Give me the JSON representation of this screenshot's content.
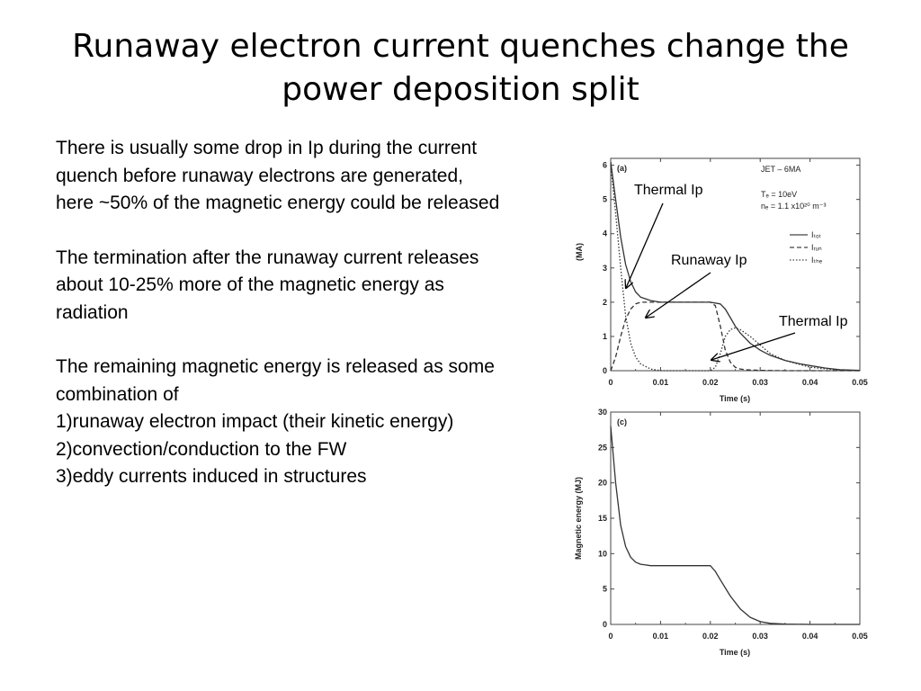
{
  "slide": {
    "title_line1": "Runaway electron current quenches change the",
    "title_line2": "power deposition split",
    "paragraph1": "There is usually some drop in Ip during the current quench before runaway electrons are generated, here ~50% of the magnetic energy could be released",
    "paragraph2": "The termination after the runaway current releases about 10-25% more of the magnetic energy as radiation",
    "paragraph3_intro": "The remaining magnetic energy is released as some combination of",
    "paragraph3_items": [
      "1)runaway electron impact (their kinetic energy)",
      "2)convection/conduction to the FW",
      "3)eddy currents induced in structures"
    ],
    "callouts": {
      "thermal_ip_1": "Thermal Ip",
      "runaway_ip": "Runaway Ip",
      "thermal_ip_2": "Thermal Ip"
    }
  },
  "chart_data": [
    {
      "type": "line",
      "panel_label": "(a)",
      "xlabel": "Time (s)",
      "ylabel": "(MA)",
      "xlim": [
        0,
        0.05
      ],
      "ylim": [
        0,
        6.2
      ],
      "x_ticks": [
        "0",
        "0.01",
        "0.02",
        "0.03",
        "0.04",
        "0.05"
      ],
      "y_ticks": [
        "0",
        "1",
        "2",
        "3",
        "4",
        "5",
        "6"
      ],
      "annotation_lines": [
        "JET – 6MA",
        "Tₑ = 10eV",
        "nₑ = 1.1 x10²⁰ m⁻³"
      ],
      "legend_labels": [
        "Iₜₒₜ",
        "Iᵣᵤₙ",
        "Iₜₕₑ"
      ],
      "series": [
        {
          "name": "Itot",
          "style": "solid",
          "x": [
            0,
            0.001,
            0.002,
            0.003,
            0.004,
            0.005,
            0.006,
            0.008,
            0.01,
            0.012,
            0.015,
            0.018,
            0.02,
            0.022,
            0.023,
            0.024,
            0.025,
            0.026,
            0.027,
            0.028,
            0.03,
            0.032,
            0.035,
            0.038,
            0.04,
            0.043,
            0.046,
            0.05
          ],
          "y": [
            6.1,
            5.0,
            3.9,
            3.1,
            2.6,
            2.3,
            2.15,
            2.05,
            2.0,
            2.0,
            2.0,
            2.0,
            2.0,
            1.95,
            1.8,
            1.55,
            1.3,
            1.1,
            0.95,
            0.8,
            0.6,
            0.45,
            0.3,
            0.2,
            0.15,
            0.08,
            0.03,
            0.01
          ]
        },
        {
          "name": "Irun",
          "style": "dashed",
          "x": [
            0,
            0.001,
            0.002,
            0.003,
            0.004,
            0.005,
            0.006,
            0.008,
            0.01,
            0.015,
            0.02,
            0.021,
            0.022,
            0.023,
            0.024,
            0.025,
            0.026,
            0.027,
            0.028,
            0.03,
            0.035,
            0.05
          ],
          "y": [
            0,
            0.4,
            1.0,
            1.5,
            1.8,
            1.95,
            2.0,
            2.0,
            2.0,
            2.0,
            2.0,
            1.9,
            1.3,
            0.6,
            0.25,
            0.1,
            0.05,
            0.03,
            0.02,
            0.01,
            0,
            0
          ]
        },
        {
          "name": "Ithe",
          "style": "dotted",
          "x": [
            0,
            0.001,
            0.002,
            0.003,
            0.004,
            0.005,
            0.006,
            0.008,
            0.01,
            0.02,
            0.021,
            0.022,
            0.023,
            0.024,
            0.025,
            0.026,
            0.028,
            0.03,
            0.032,
            0.035,
            0.04,
            0.045,
            0.05
          ],
          "y": [
            6.0,
            4.6,
            3.0,
            1.6,
            0.8,
            0.4,
            0.2,
            0.05,
            0,
            0,
            0.1,
            0.5,
            1.0,
            1.2,
            1.25,
            1.2,
            1.0,
            0.75,
            0.5,
            0.3,
            0.1,
            0.03,
            0
          ]
        }
      ]
    },
    {
      "type": "line",
      "panel_label": "(c)",
      "xlabel": "Time (s)",
      "ylabel": "Magnetic energy (MJ)",
      "xlim": [
        0,
        0.05
      ],
      "ylim": [
        0,
        30
      ],
      "x_ticks": [
        "0",
        "0.01",
        "0.02",
        "0.03",
        "0.04",
        "0.05"
      ],
      "y_ticks": [
        "0",
        "5",
        "10",
        "15",
        "20",
        "25",
        "30"
      ],
      "series": [
        {
          "name": "magnetic_energy",
          "style": "solid",
          "x": [
            0,
            0.001,
            0.002,
            0.003,
            0.004,
            0.005,
            0.006,
            0.007,
            0.008,
            0.01,
            0.015,
            0.02,
            0.021,
            0.022,
            0.024,
            0.026,
            0.028,
            0.03,
            0.032,
            0.035,
            0.04,
            0.045,
            0.05
          ],
          "y": [
            28,
            20,
            14,
            11,
            9.5,
            8.8,
            8.5,
            8.4,
            8.3,
            8.3,
            8.3,
            8.3,
            7.5,
            6.3,
            4.0,
            2.2,
            1.0,
            0.4,
            0.15,
            0.05,
            0,
            0,
            0
          ]
        }
      ]
    }
  ]
}
